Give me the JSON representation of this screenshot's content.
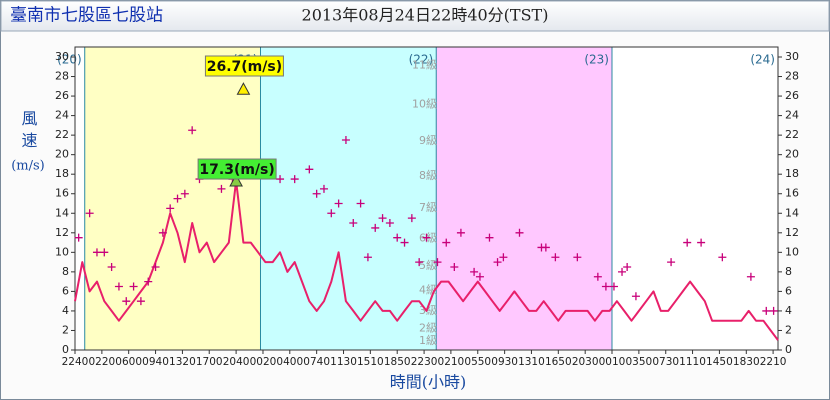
{
  "chart_data": {
    "type": "line",
    "title": "臺南市七股區七股站",
    "subtitle": "2013年08月24日22時40分(TST)",
    "y_label": "風速",
    "y_unit": "(m/s)",
    "x_label": "時間(小時)",
    "xlim": [
      0,
      96
    ],
    "ylim": [
      0,
      30
    ],
    "yticks": [
      0,
      2,
      4,
      6,
      8,
      10,
      12,
      14,
      16,
      18,
      20,
      22,
      24,
      26,
      28,
      30
    ],
    "xticks": [
      {
        "value": 0,
        "label": "2240"
      },
      {
        "value": 3.67,
        "label": "0220"
      },
      {
        "value": 7.33,
        "label": "0600"
      },
      {
        "value": 11,
        "label": "0940"
      },
      {
        "value": 14.67,
        "label": "1320"
      },
      {
        "value": 18.33,
        "label": "1700"
      },
      {
        "value": 22,
        "label": "2040"
      },
      {
        "value": 25.67,
        "label": "0020"
      },
      {
        "value": 29.33,
        "label": "0400"
      },
      {
        "value": 33,
        "label": "0740"
      },
      {
        "value": 36.67,
        "label": "1130"
      },
      {
        "value": 40.33,
        "label": "1510"
      },
      {
        "value": 44,
        "label": "1850"
      },
      {
        "value": 47.67,
        "label": "2230"
      },
      {
        "value": 51.33,
        "label": "0210"
      },
      {
        "value": 55,
        "label": "0550"
      },
      {
        "value": 58.67,
        "label": "0930"
      },
      {
        "value": 62.33,
        "label": "1310"
      },
      {
        "value": 66,
        "label": "1650"
      },
      {
        "value": 69.67,
        "label": "2030"
      },
      {
        "value": 73.33,
        "label": "0010"
      },
      {
        "value": 77,
        "label": "0350"
      },
      {
        "value": 80.67,
        "label": "0730"
      },
      {
        "value": 84.33,
        "label": "1110"
      },
      {
        "value": 88,
        "label": "1450"
      },
      {
        "value": 91.67,
        "label": "1830"
      },
      {
        "value": 95.33,
        "label": "2210"
      }
    ],
    "days": [
      {
        "label": "(20)",
        "end": 1.33,
        "color": "#ffffff"
      },
      {
        "label": "(21)",
        "end": 25.33,
        "color": "#ffffc4"
      },
      {
        "label": "(22)",
        "end": 49.33,
        "color": "#c8ffff"
      },
      {
        "label": "(23)",
        "end": 73.33,
        "color": "#ffc8ff"
      },
      {
        "label": "(24)",
        "end": 97.33,
        "color": "#ffffff"
      }
    ],
    "levels": [
      {
        "label": "1級",
        "value": 0.3
      },
      {
        "label": "2級",
        "value": 1.6
      },
      {
        "label": "3級",
        "value": 3.4
      },
      {
        "label": "4級",
        "value": 5.5
      },
      {
        "label": "5級",
        "value": 8.0
      },
      {
        "label": "6級",
        "value": 10.8
      },
      {
        "label": "7級",
        "value": 13.9
      },
      {
        "label": "8級",
        "value": 17.2
      },
      {
        "label": "9級",
        "value": 20.8
      },
      {
        "label": "10級",
        "value": 24.5
      },
      {
        "label": "11級",
        "value": 28.5
      }
    ],
    "series": [
      {
        "color": "#e8206a",
        "style": "line",
        "x": [
          0,
          1,
          2,
          3,
          4,
          5,
          6,
          7,
          8,
          9,
          10,
          11,
          12,
          13,
          14,
          15,
          16,
          17,
          18,
          19,
          20,
          21,
          22,
          23,
          24,
          25,
          26,
          27,
          28,
          29,
          30,
          31,
          32,
          33,
          34,
          35,
          36,
          37,
          38,
          39,
          40,
          41,
          42,
          43,
          44,
          45,
          46,
          47,
          48,
          49,
          50,
          51,
          52,
          53,
          54,
          55,
          56,
          57,
          58,
          59,
          60,
          61,
          62,
          63,
          64,
          65,
          66,
          67,
          68,
          69,
          70,
          71,
          72,
          73,
          74,
          75,
          76,
          77,
          78,
          79,
          80,
          81,
          82,
          83,
          84,
          85,
          86,
          87,
          88,
          89,
          90,
          91,
          92,
          93,
          94,
          95,
          96
        ],
        "values": [
          5,
          9,
          6,
          7,
          5,
          4,
          3,
          4,
          5,
          6,
          7,
          9,
          11,
          14,
          12,
          9,
          13,
          10,
          11,
          9,
          10,
          11,
          17.3,
          11,
          11,
          10,
          9,
          9,
          10,
          8,
          9,
          7,
          5,
          4,
          5,
          7,
          10,
          5,
          4,
          3,
          4,
          5,
          4,
          4,
          3,
          4,
          5,
          5,
          4,
          6,
          7,
          7,
          6,
          5,
          6,
          7,
          6,
          5,
          4,
          5,
          6,
          5,
          4,
          4,
          5,
          4,
          3,
          4,
          4,
          4,
          4,
          3,
          4,
          4,
          5,
          4,
          3,
          4,
          5,
          6,
          4,
          4,
          5,
          6,
          7,
          6,
          5,
          3,
          3,
          3,
          3,
          3,
          4,
          3,
          3,
          2,
          1
        ]
      },
      {
        "color": "#c8007a",
        "style": "cross",
        "x": [
          0.5,
          2,
          3,
          4,
          5,
          6,
          7,
          8,
          9,
          10,
          11,
          12,
          13,
          14,
          15,
          16,
          17,
          20,
          21.5,
          28,
          30,
          32,
          33,
          34,
          35,
          36,
          37,
          38,
          39,
          40,
          41,
          42,
          43,
          44,
          45,
          46,
          47,
          48,
          49.5,
          50.7,
          51.8,
          52.7,
          54.5,
          55.3,
          56.6,
          57.7,
          58.5,
          60.7,
          63.7,
          64.3,
          65.6,
          68.6,
          71.4,
          72.5,
          73.6,
          74.7,
          75.4,
          76.6,
          81.4,
          83.6,
          85.5,
          88.4,
          92.3,
          94.4,
          95.4
        ],
        "values": [
          11.5,
          14,
          10,
          10,
          8.5,
          6.5,
          5,
          6.5,
          5,
          7,
          8.5,
          12,
          14.5,
          15.5,
          16,
          22.5,
          17.5,
          16.5,
          17.5,
          17.5,
          17.5,
          18.5,
          16,
          16.5,
          14,
          15,
          21.5,
          13,
          15,
          9.5,
          12.5,
          13.5,
          13,
          11.5,
          11,
          13.5,
          9,
          11.5,
          9,
          11,
          8.5,
          12,
          8,
          7.5,
          11.5,
          9,
          9.5,
          12,
          10.5,
          10.5,
          9.5,
          9.5,
          7.5,
          6.5,
          6.5,
          8,
          8.5,
          5.5,
          9,
          11,
          11,
          9.5,
          7.5,
          4,
          4
        ]
      }
    ],
    "annotations": [
      {
        "label": "26.7(m/s)",
        "x": 23,
        "value": 26.7,
        "color": "#ffff00"
      },
      {
        "label": "17.3(m/s)",
        "x": 22,
        "value": 17.3,
        "color": "#44ee33"
      }
    ]
  }
}
